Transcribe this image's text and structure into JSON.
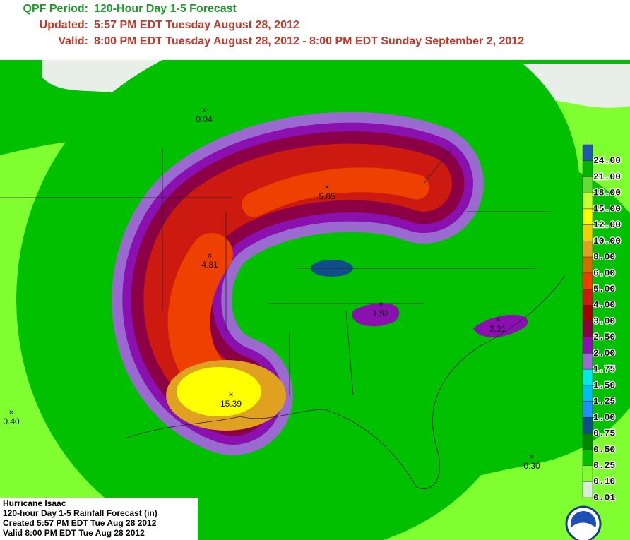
{
  "header": {
    "rows": [
      {
        "label": "QPF Period:",
        "value": "120-Hour Day 1-5 Forecast",
        "color": "#1f9a2a"
      },
      {
        "label": "Updated:",
        "value": "5:57 PM EDT Tuesday August 28, 2012",
        "color": "#c0392b"
      },
      {
        "label": "Valid:",
        "value": "8:00 PM EDT Tuesday August 28, 2012 - 8:00 PM EDT Sunday September 2, 2012",
        "color": "#c0392b"
      }
    ]
  },
  "legend": {
    "items": [
      {
        "label": "24.00",
        "color": "#1e5aa8"
      },
      {
        "label": "21.00",
        "color": "#00b400"
      },
      {
        "label": "18.00",
        "color": "#66dd33"
      },
      {
        "label": "15.00",
        "color": "#ccff33"
      },
      {
        "label": "12.00",
        "color": "#ffff00"
      },
      {
        "label": "10.00",
        "color": "#f0d000"
      },
      {
        "label": "8.00",
        "color": "#e0a020"
      },
      {
        "label": "6.00",
        "color": "#d07000"
      },
      {
        "label": "5.00",
        "color": "#ee4000"
      },
      {
        "label": "4.00",
        "color": "#cc1a10"
      },
      {
        "label": "3.00",
        "color": "#a00000"
      },
      {
        "label": "2.50",
        "color": "#8b0045"
      },
      {
        "label": "2.00",
        "color": "#8a10b0"
      },
      {
        "label": "1.75",
        "color": "#9a6ad0"
      },
      {
        "label": "1.50",
        "color": "#00e8e8"
      },
      {
        "label": "1.25",
        "color": "#00c0f0"
      },
      {
        "label": "1.00",
        "color": "#1e90ff"
      },
      {
        "label": "0.75",
        "color": "#104e8b"
      },
      {
        "label": "0.50",
        "color": "#008800"
      },
      {
        "label": "0.25",
        "color": "#00c000"
      },
      {
        "label": "0.10",
        "color": "#80ff30"
      },
      {
        "label": "0.01",
        "color": "#d8ecd8"
      }
    ]
  },
  "map": {
    "points": [
      {
        "label": "0.04"
      },
      {
        "label": "5.65"
      },
      {
        "label": "4.81"
      },
      {
        "label": "1.93"
      },
      {
        "label": "2.21"
      },
      {
        "label": "15.39"
      },
      {
        "label": "0.40"
      },
      {
        "label": "0.30"
      }
    ]
  },
  "caption": {
    "lines": [
      "Hurricane Isaac",
      "120-hour Day 1-5 Rainfall Forecast (in)",
      "Created 5:57 PM EDT Tue Aug 28 2012",
      "Valid 8:00 PM EDT Tue Aug 28 2012"
    ]
  }
}
